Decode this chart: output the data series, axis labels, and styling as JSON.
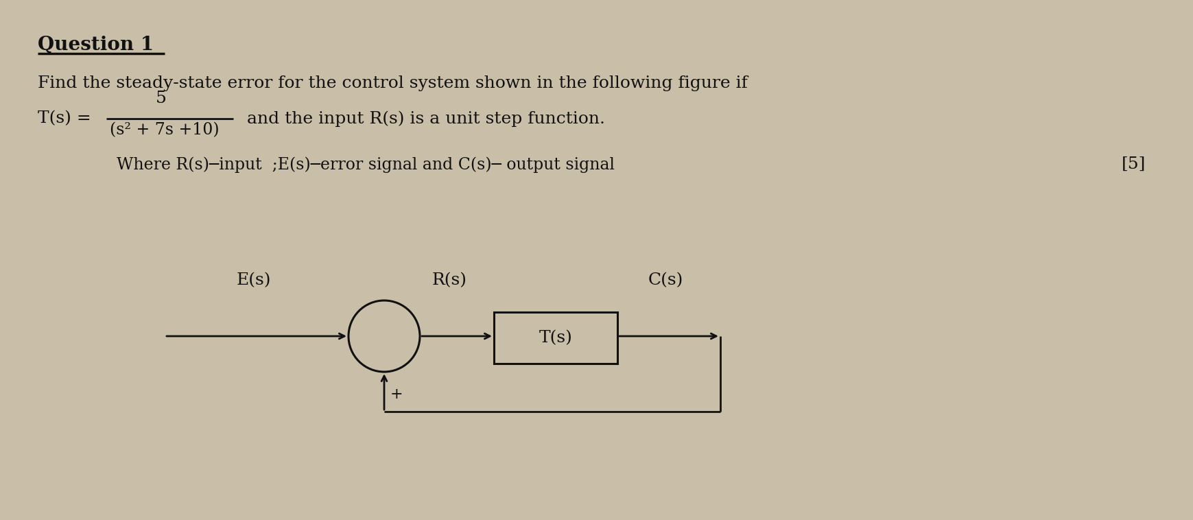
{
  "background_color": "#c9bfa8",
  "title": "Question 1",
  "line1": "Find the steady-state error for the control system shown in the following figure if",
  "transfer_func_lhs": "T(s) =",
  "numerator": "5",
  "denominator": "(s² + 7s +10)",
  "line3": "and the input R(s) is a unit step function.",
  "line4": "Where R(s)─input  ;E(s)─error signal and C(s)─ output signal",
  "mark": "[5]",
  "label_Es": "E(s)",
  "label_Rs": "R(s)",
  "label_Cs": "C(s)",
  "label_Ts": "T(s)",
  "plus_sign": "+",
  "text_color": "#111111",
  "box_color": "#111111",
  "arrow_color": "#111111",
  "title_fontsize": 20,
  "body_fontsize": 18,
  "small_fontsize": 16,
  "diagram_fontsize": 16
}
